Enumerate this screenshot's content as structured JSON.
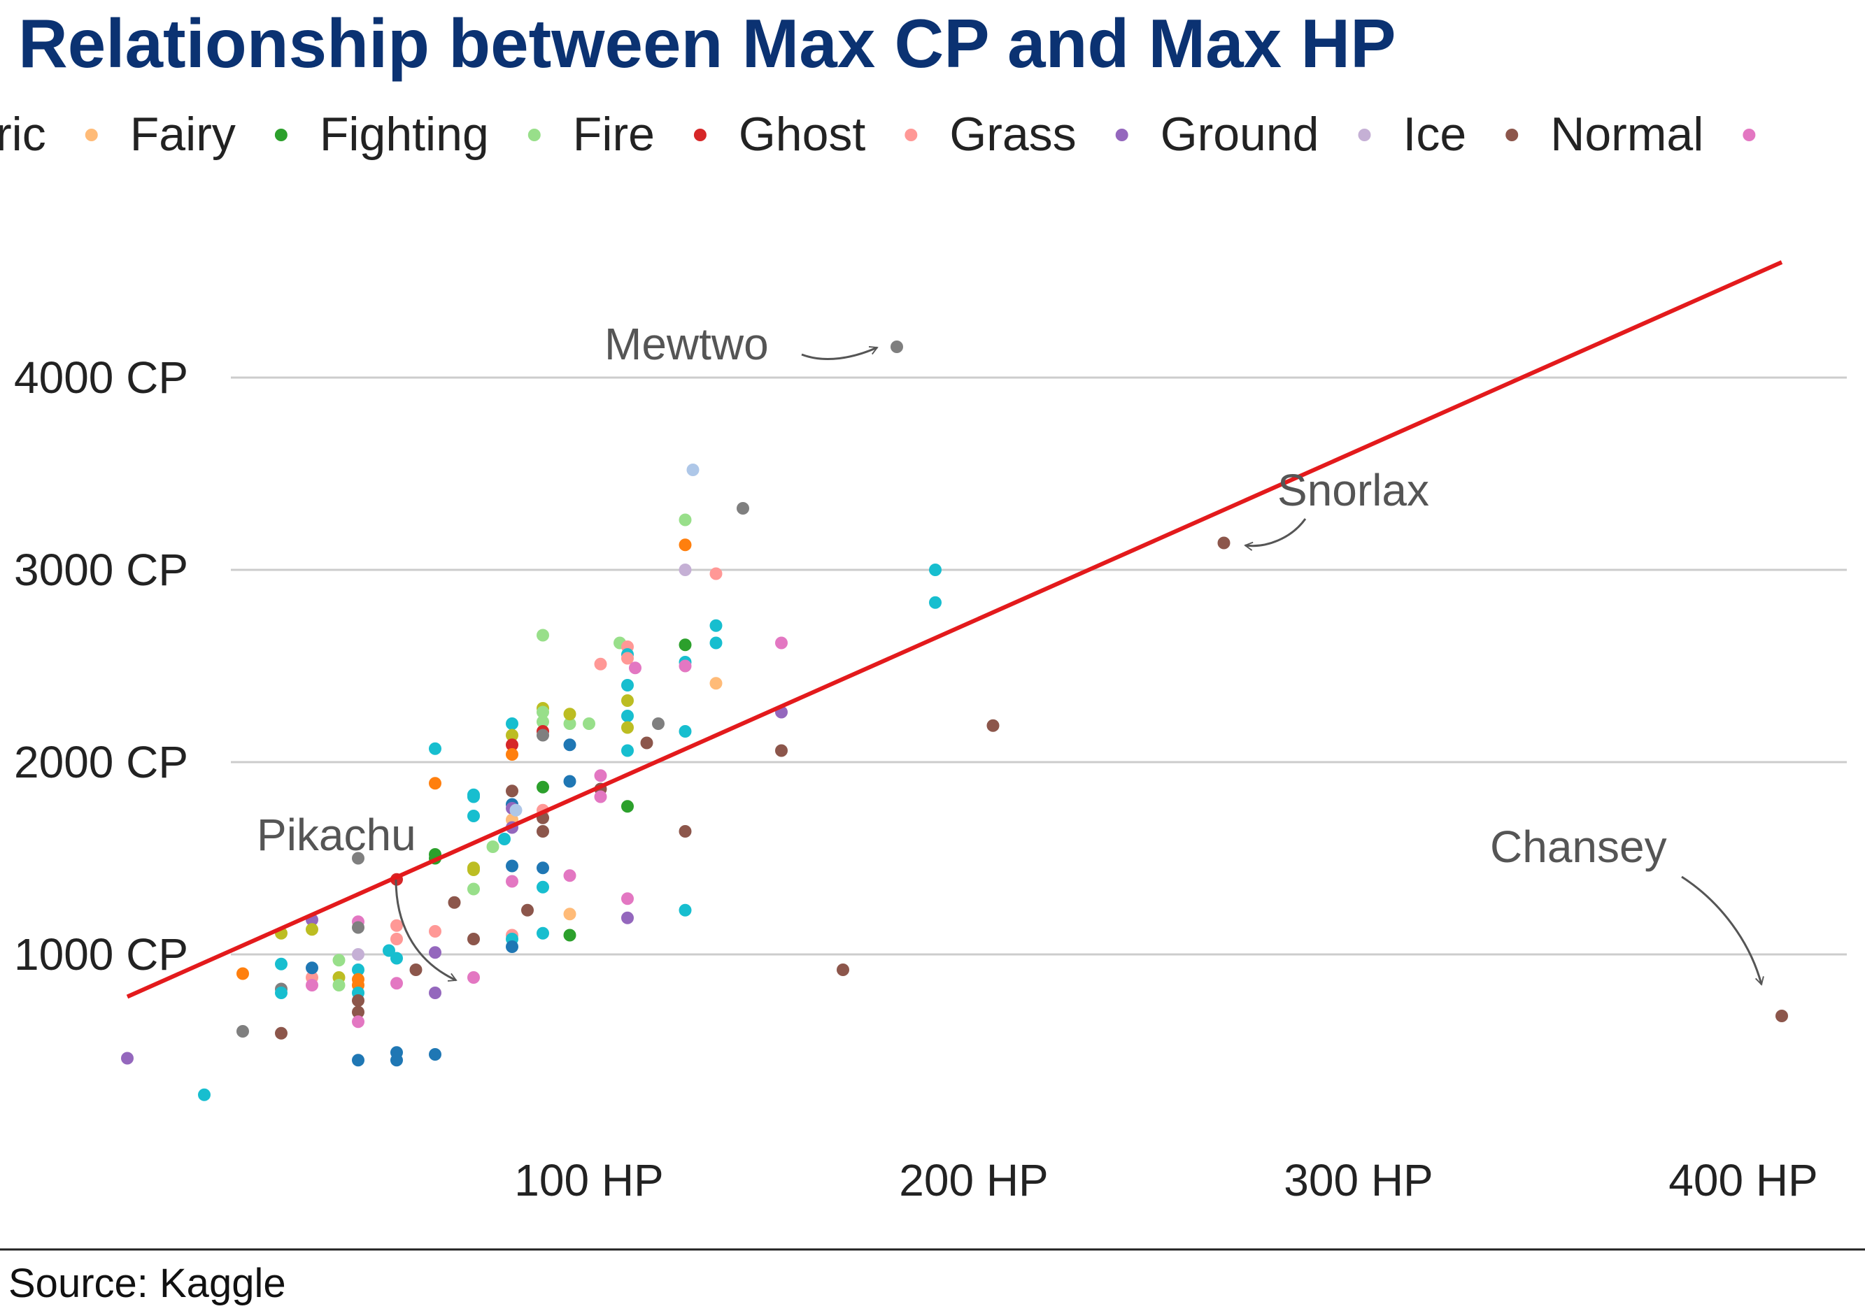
{
  "chart_data": {
    "type": "scatter",
    "title": "Relationship between Max CP and Max HP",
    "source": "Source: Kaggle",
    "xlabel": "",
    "ylabel": "",
    "x_unit": " HP",
    "y_unit": " CP",
    "xlim": [
      -50,
      410
    ],
    "ylim": [
      0,
      4700
    ],
    "x_ticks": [
      {
        "value": 100,
        "label": "100 HP"
      },
      {
        "value": 200,
        "label": "200 HP"
      },
      {
        "value": 300,
        "label": "300 HP"
      },
      {
        "value": 400,
        "label": "400 HP"
      }
    ],
    "y_ticks": [
      {
        "value": 1000,
        "label": "1000 CP"
      },
      {
        "value": 2000,
        "label": "2000 CP"
      },
      {
        "value": 3000,
        "label": "3000 CP"
      },
      {
        "value": 4000,
        "label": "4000 CP"
      }
    ],
    "grid": "horizontal",
    "legend_position": "top",
    "legend": [
      {
        "label": "ric",
        "color": "#bcbd22"
      },
      {
        "label": "Fairy",
        "color": "#ffbb78"
      },
      {
        "label": "Fighting",
        "color": "#2ca02c"
      },
      {
        "label": "Fire",
        "color": "#98df8a"
      },
      {
        "label": "Ghost",
        "color": "#d62728"
      },
      {
        "label": "Grass",
        "color": "#ff9896"
      },
      {
        "label": "Ground",
        "color": "#9467bd"
      },
      {
        "label": "Ice",
        "color": "#c5b0d5"
      },
      {
        "label": "Normal",
        "color": "#8c564b"
      },
      {
        "label": "",
        "color": "#e377c2"
      }
    ],
    "trend_line": {
      "x": [
        -20,
        410
      ],
      "y": [
        780,
        4600
      ],
      "color": "#e31a1c"
    },
    "annotations": [
      {
        "text": "Mewtwo",
        "point": [
          180,
          4160
        ]
      },
      {
        "text": "Snorlax",
        "point": [
          265,
          3140
        ]
      },
      {
        "text": "Pikachu",
        "point": [
          35,
          880
        ]
      },
      {
        "text": "Chansey",
        "point": [
          410,
          680
        ]
      }
    ],
    "points": [
      {
        "x": -20,
        "y": 460,
        "color": "#9467bd"
      },
      {
        "x": 0,
        "y": 270,
        "color": "#17becf"
      },
      {
        "x": 10,
        "y": 600,
        "color": "#7f7f7f"
      },
      {
        "x": 20,
        "y": 590,
        "color": "#8c564b"
      },
      {
        "x": 10,
        "y": 900,
        "color": "#ff7f0e"
      },
      {
        "x": 20,
        "y": 820,
        "color": "#7f7f7f"
      },
      {
        "x": 20,
        "y": 950,
        "color": "#17becf"
      },
      {
        "x": 20,
        "y": 800,
        "color": "#17becf"
      },
      {
        "x": 20,
        "y": 1110,
        "color": "#bcbd22"
      },
      {
        "x": 28,
        "y": 880,
        "color": "#ff9896"
      },
      {
        "x": 28,
        "y": 930,
        "color": "#1f77b4"
      },
      {
        "x": 28,
        "y": 1180,
        "color": "#9467bd"
      },
      {
        "x": 28,
        "y": 1130,
        "color": "#bcbd22"
      },
      {
        "x": 28,
        "y": 840,
        "color": "#e377c2"
      },
      {
        "x": 35,
        "y": 880,
        "color": "#bcbd22"
      },
      {
        "x": 35,
        "y": 970,
        "color": "#98df8a"
      },
      {
        "x": 35,
        "y": 840,
        "color": "#98df8a"
      },
      {
        "x": 40,
        "y": 1500,
        "color": "#7f7f7f"
      },
      {
        "x": 40,
        "y": 1170,
        "color": "#e377c2"
      },
      {
        "x": 40,
        "y": 1140,
        "color": "#7f7f7f"
      },
      {
        "x": 40,
        "y": 1000,
        "color": "#c5b0d5"
      },
      {
        "x": 40,
        "y": 920,
        "color": "#17becf"
      },
      {
        "x": 40,
        "y": 870,
        "color": "#ff7f0e"
      },
      {
        "x": 40,
        "y": 840,
        "color": "#ff7f0e"
      },
      {
        "x": 40,
        "y": 800,
        "color": "#17becf"
      },
      {
        "x": 40,
        "y": 760,
        "color": "#8c564b"
      },
      {
        "x": 40,
        "y": 700,
        "color": "#8c564b"
      },
      {
        "x": 40,
        "y": 650,
        "color": "#e377c2"
      },
      {
        "x": 40,
        "y": 450,
        "color": "#1f77b4"
      },
      {
        "x": 48,
        "y": 1020,
        "color": "#17becf"
      },
      {
        "x": 50,
        "y": 1390,
        "color": "#d62728"
      },
      {
        "x": 50,
        "y": 980,
        "color": "#17becf"
      },
      {
        "x": 50,
        "y": 1150,
        "color": "#ff9896"
      },
      {
        "x": 50,
        "y": 1080,
        "color": "#ff9896"
      },
      {
        "x": 50,
        "y": 850,
        "color": "#e377c2"
      },
      {
        "x": 50,
        "y": 490,
        "color": "#1f77b4"
      },
      {
        "x": 50,
        "y": 450,
        "color": "#1f77b4"
      },
      {
        "x": 55,
        "y": 920,
        "color": "#8c564b"
      },
      {
        "x": 60,
        "y": 2070,
        "color": "#17becf"
      },
      {
        "x": 60,
        "y": 1890,
        "color": "#ff7f0e"
      },
      {
        "x": 60,
        "y": 1520,
        "color": "#2ca02c"
      },
      {
        "x": 60,
        "y": 1500,
        "color": "#2ca02c"
      },
      {
        "x": 60,
        "y": 1120,
        "color": "#ff9896"
      },
      {
        "x": 60,
        "y": 1010,
        "color": "#9467bd"
      },
      {
        "x": 60,
        "y": 800,
        "color": "#9467bd"
      },
      {
        "x": 60,
        "y": 480,
        "color": "#1f77b4"
      },
      {
        "x": 65,
        "y": 1270,
        "color": "#8c564b"
      },
      {
        "x": 70,
        "y": 1830,
        "color": "#17becf"
      },
      {
        "x": 70,
        "y": 1820,
        "color": "#17becf"
      },
      {
        "x": 70,
        "y": 1720,
        "color": "#17becf"
      },
      {
        "x": 70,
        "y": 1450,
        "color": "#bcbd22"
      },
      {
        "x": 70,
        "y": 1440,
        "color": "#bcbd22"
      },
      {
        "x": 70,
        "y": 1340,
        "color": "#98df8a"
      },
      {
        "x": 70,
        "y": 1080,
        "color": "#8c564b"
      },
      {
        "x": 70,
        "y": 880,
        "color": "#e377c2"
      },
      {
        "x": 75,
        "y": 1560,
        "color": "#98df8a"
      },
      {
        "x": 78,
        "y": 1600,
        "color": "#17becf"
      },
      {
        "x": 80,
        "y": 2200,
        "color": "#17becf"
      },
      {
        "x": 80,
        "y": 2140,
        "color": "#bcbd22"
      },
      {
        "x": 80,
        "y": 2090,
        "color": "#d62728"
      },
      {
        "x": 80,
        "y": 2040,
        "color": "#ff7f0e"
      },
      {
        "x": 80,
        "y": 1850,
        "color": "#8c564b"
      },
      {
        "x": 80,
        "y": 1780,
        "color": "#1f77b4"
      },
      {
        "x": 80,
        "y": 1760,
        "color": "#9467bd"
      },
      {
        "x": 80,
        "y": 1700,
        "color": "#ffbb78"
      },
      {
        "x": 80,
        "y": 1660,
        "color": "#9467bd"
      },
      {
        "x": 80,
        "y": 1460,
        "color": "#1f77b4"
      },
      {
        "x": 80,
        "y": 1380,
        "color": "#e377c2"
      },
      {
        "x": 80,
        "y": 1100,
        "color": "#ff9896"
      },
      {
        "x": 80,
        "y": 1080,
        "color": "#17becf"
      },
      {
        "x": 80,
        "y": 1040,
        "color": "#1f77b4"
      },
      {
        "x": 81,
        "y": 1750,
        "color": "#aec7e8"
      },
      {
        "x": 84,
        "y": 1230,
        "color": "#8c564b"
      },
      {
        "x": 88,
        "y": 2660,
        "color": "#98df8a"
      },
      {
        "x": 88,
        "y": 2280,
        "color": "#bcbd22"
      },
      {
        "x": 88,
        "y": 2260,
        "color": "#98df8a"
      },
      {
        "x": 88,
        "y": 2210,
        "color": "#98df8a"
      },
      {
        "x": 88,
        "y": 2160,
        "color": "#d62728"
      },
      {
        "x": 88,
        "y": 2140,
        "color": "#7f7f7f"
      },
      {
        "x": 88,
        "y": 1870,
        "color": "#2ca02c"
      },
      {
        "x": 88,
        "y": 1750,
        "color": "#ff9896"
      },
      {
        "x": 88,
        "y": 1710,
        "color": "#8c564b"
      },
      {
        "x": 88,
        "y": 1640,
        "color": "#8c564b"
      },
      {
        "x": 88,
        "y": 1450,
        "color": "#1f77b4"
      },
      {
        "x": 88,
        "y": 1350,
        "color": "#17becf"
      },
      {
        "x": 88,
        "y": 1110,
        "color": "#17becf"
      },
      {
        "x": 95,
        "y": 2200,
        "color": "#98df8a"
      },
      {
        "x": 95,
        "y": 2250,
        "color": "#bcbd22"
      },
      {
        "x": 95,
        "y": 2090,
        "color": "#1f77b4"
      },
      {
        "x": 95,
        "y": 1900,
        "color": "#1f77b4"
      },
      {
        "x": 95,
        "y": 1410,
        "color": "#e377c2"
      },
      {
        "x": 95,
        "y": 1210,
        "color": "#ffbb78"
      },
      {
        "x": 95,
        "y": 1100,
        "color": "#2ca02c"
      },
      {
        "x": 100,
        "y": 2200,
        "color": "#98df8a"
      },
      {
        "x": 103,
        "y": 2510,
        "color": "#ff9896"
      },
      {
        "x": 103,
        "y": 1930,
        "color": "#e377c2"
      },
      {
        "x": 103,
        "y": 1860,
        "color": "#8c564b"
      },
      {
        "x": 103,
        "y": 1820,
        "color": "#e377c2"
      },
      {
        "x": 108,
        "y": 2620,
        "color": "#98df8a"
      },
      {
        "x": 110,
        "y": 2600,
        "color": "#ff9896"
      },
      {
        "x": 110,
        "y": 2560,
        "color": "#17becf"
      },
      {
        "x": 110,
        "y": 2540,
        "color": "#ff9896"
      },
      {
        "x": 110,
        "y": 2400,
        "color": "#17becf"
      },
      {
        "x": 110,
        "y": 2320,
        "color": "#bcbd22"
      },
      {
        "x": 110,
        "y": 2240,
        "color": "#17becf"
      },
      {
        "x": 110,
        "y": 2180,
        "color": "#bcbd22"
      },
      {
        "x": 110,
        "y": 2060,
        "color": "#17becf"
      },
      {
        "x": 110,
        "y": 1770,
        "color": "#2ca02c"
      },
      {
        "x": 110,
        "y": 1290,
        "color": "#e377c2"
      },
      {
        "x": 110,
        "y": 1190,
        "color": "#9467bd"
      },
      {
        "x": 112,
        "y": 2490,
        "color": "#e377c2"
      },
      {
        "x": 115,
        "y": 2100,
        "color": "#8c564b"
      },
      {
        "x": 118,
        "y": 2200,
        "color": "#7f7f7f"
      },
      {
        "x": 125,
        "y": 3260,
        "color": "#98df8a"
      },
      {
        "x": 125,
        "y": 3130,
        "color": "#ff7f0e"
      },
      {
        "x": 125,
        "y": 3000,
        "color": "#c5b0d5"
      },
      {
        "x": 125,
        "y": 2610,
        "color": "#2ca02c"
      },
      {
        "x": 125,
        "y": 2520,
        "color": "#17becf"
      },
      {
        "x": 125,
        "y": 2500,
        "color": "#e377c2"
      },
      {
        "x": 125,
        "y": 2160,
        "color": "#17becf"
      },
      {
        "x": 125,
        "y": 1640,
        "color": "#8c564b"
      },
      {
        "x": 125,
        "y": 1230,
        "color": "#17becf"
      },
      {
        "x": 127,
        "y": 3520,
        "color": "#aec7e8"
      },
      {
        "x": 133,
        "y": 2980,
        "color": "#ff9896"
      },
      {
        "x": 133,
        "y": 2710,
        "color": "#17becf"
      },
      {
        "x": 133,
        "y": 2620,
        "color": "#17becf"
      },
      {
        "x": 133,
        "y": 2410,
        "color": "#ffbb78"
      },
      {
        "x": 140,
        "y": 3320,
        "color": "#7f7f7f"
      },
      {
        "x": 150,
        "y": 2620,
        "color": "#e377c2"
      },
      {
        "x": 150,
        "y": 2260,
        "color": "#9467bd"
      },
      {
        "x": 150,
        "y": 2060,
        "color": "#8c564b"
      },
      {
        "x": 166,
        "y": 920,
        "color": "#8c564b"
      },
      {
        "x": 180,
        "y": 4160,
        "color": "#7f7f7f"
      },
      {
        "x": 190,
        "y": 3000,
        "color": "#17becf"
      },
      {
        "x": 190,
        "y": 2830,
        "color": "#17becf"
      },
      {
        "x": 205,
        "y": 2190,
        "color": "#8c564b"
      },
      {
        "x": 265,
        "y": 3140,
        "color": "#8c564b"
      },
      {
        "x": 410,
        "y": 680,
        "color": "#8c564b"
      }
    ]
  }
}
